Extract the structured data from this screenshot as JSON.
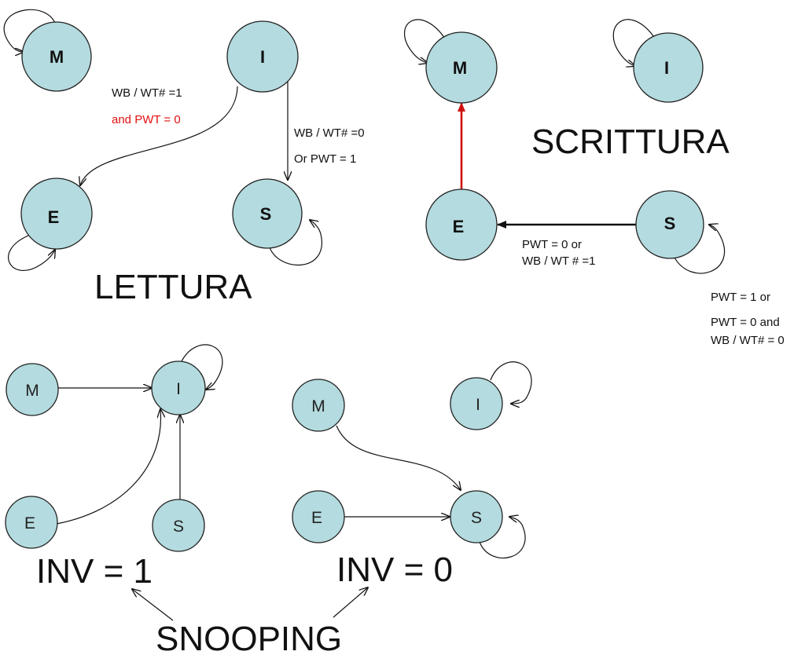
{
  "titles": {
    "lettura": "LETTURA",
    "scrittura": "SCRITTURA",
    "inv1": "INV = 1",
    "inv0": "INV = 0",
    "snooping": "SNOOPING"
  },
  "states": {
    "m": "M",
    "i": "I",
    "e": "E",
    "s": "S"
  },
  "lettura": {
    "i_to_e_line1": "WB / WT# =1",
    "i_to_e_line2": "and PWT = 0",
    "i_to_s_line1": "WB / WT# =0",
    "i_to_s_line2": "Or PWT = 1"
  },
  "scrittura": {
    "s_to_e_line1": "PWT = 0 or",
    "s_to_e_line2": "WB / WT # =1",
    "s_self_line1": "PWT = 1 or",
    "s_self_line2": "PWT = 0 and",
    "s_self_line3": "WB / WT# = 0"
  },
  "colors": {
    "node_fill": "#b4dbdf",
    "accent_red": "#d01010"
  }
}
